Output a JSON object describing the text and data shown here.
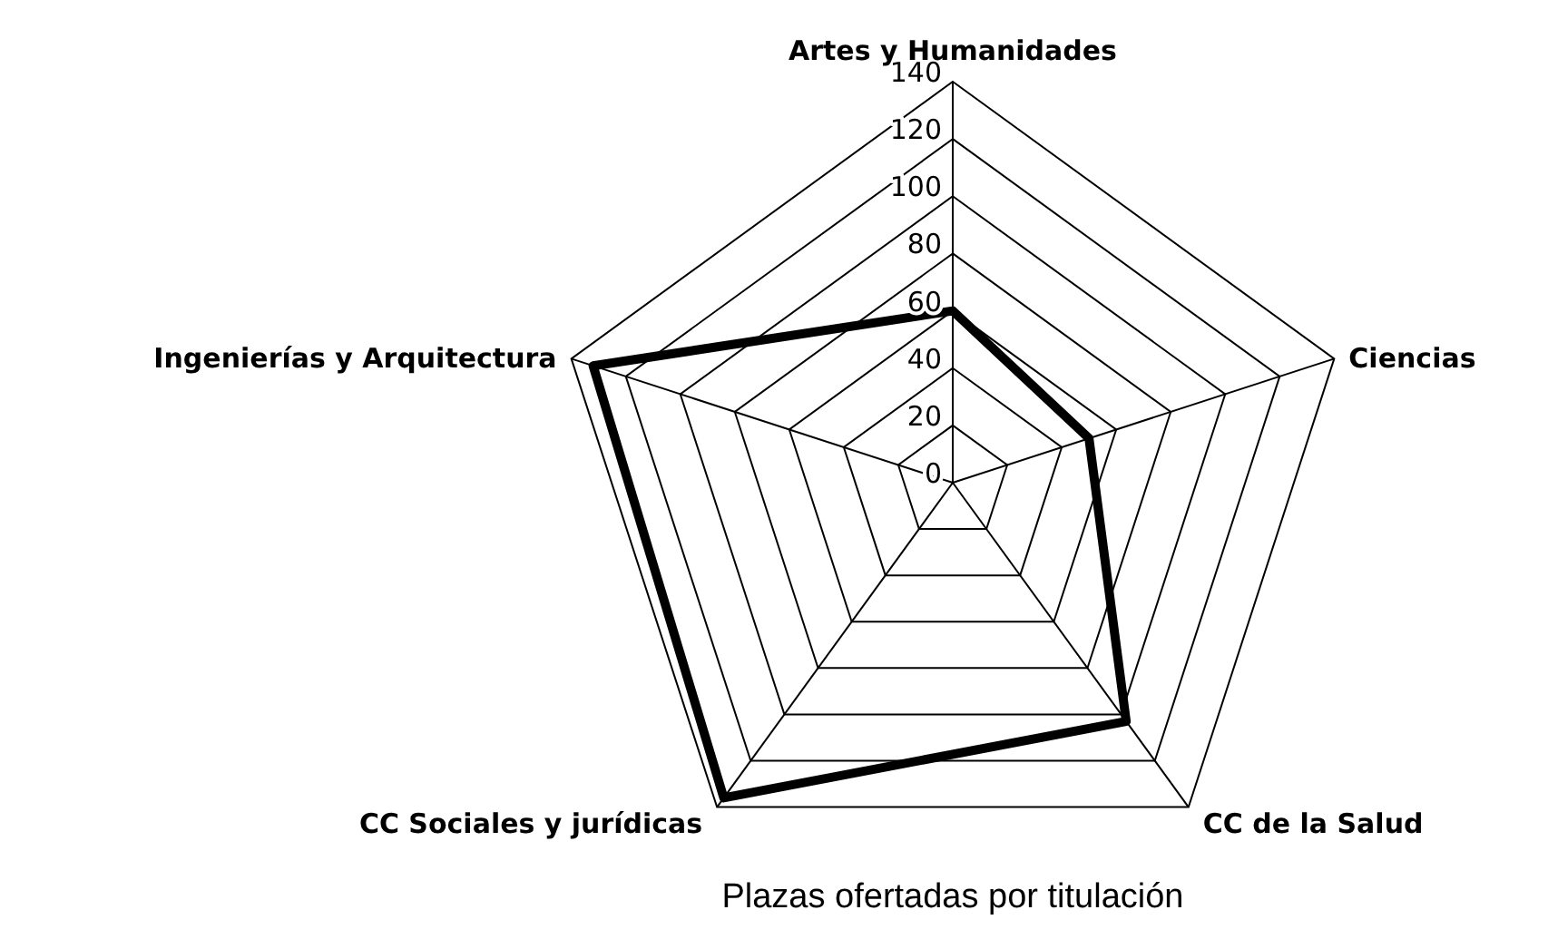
{
  "chart_data": {
    "type": "radar",
    "title": "Plazas ofertadas por titulación",
    "categories": [
      "Artes y Humanidades",
      "Ciencias",
      "CC de la Salud",
      "CC Sociales y jurídicas",
      "Ingenierías y Arquitectura"
    ],
    "series": [
      {
        "color": "#000000",
        "values": [
          60,
          50,
          103,
          136,
          132
        ]
      }
    ],
    "ylim": [
      0,
      140
    ],
    "yticks": [
      0,
      20,
      40,
      60,
      80,
      100,
      120,
      140
    ],
    "grid": true,
    "marker": "none",
    "line_style": "solid"
  }
}
